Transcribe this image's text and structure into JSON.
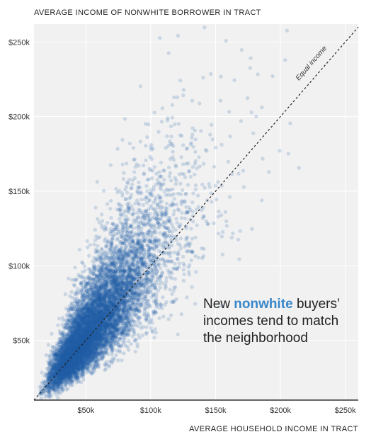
{
  "chart_data": {
    "type": "scatter",
    "xlabel": "AVERAGE HOUSEHOLD INCOME IN TRACT",
    "ylabel": "AVERAGE INCOME OF NONWHITE BORROWER IN TRACT",
    "xlim": [
      10,
      260
    ],
    "ylim": [
      10,
      262
    ],
    "x_ticks": [
      {
        "value": 50,
        "label": "$50k"
      },
      {
        "value": 100,
        "label": "$100k"
      },
      {
        "value": 150,
        "label": "$150k"
      },
      {
        "value": 200,
        "label": "$200k"
      },
      {
        "value": 250,
        "label": "$250k"
      }
    ],
    "y_ticks": [
      {
        "value": 50,
        "label": "$50k"
      },
      {
        "value": 100,
        "label": "$100k"
      },
      {
        "value": 150,
        "label": "$150k"
      },
      {
        "value": 200,
        "label": "$200k"
      },
      {
        "value": 250,
        "label": "$250k"
      }
    ],
    "reference_line": {
      "label": "Equal income",
      "slope": 1,
      "style": "dashed"
    },
    "point_color": "#1f5fa8",
    "point_opacity": 0.18,
    "distribution": {
      "approx_point_count": 9000,
      "densest_region": {
        "x": 55,
        "y": 55
      },
      "note": "dense cloud of tracts concentrated near the equal-income line at low incomes, spreading upward and outward at higher incomes"
    },
    "grid": true
  },
  "annotation": {
    "line1_prefix": "New ",
    "line1_highlight": "nonwhite",
    "line1_suffix": " buyers’",
    "line2": "incomes tend to match",
    "line3": "the neighborhood"
  },
  "colors": {
    "plot_background": "#f1f1f1",
    "grid": "#ffffff",
    "highlight": "#3a87c8",
    "axis": "#333333"
  }
}
